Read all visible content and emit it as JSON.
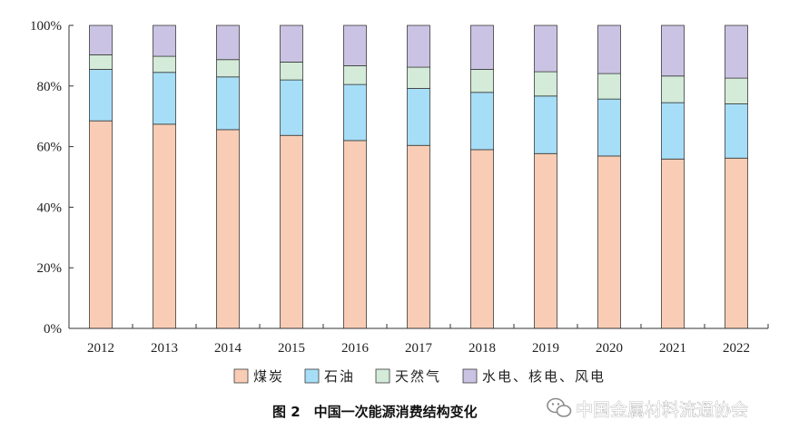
{
  "chart_data": {
    "type": "bar",
    "stacked": true,
    "categories": [
      "2012",
      "2013",
      "2014",
      "2015",
      "2016",
      "2017",
      "2018",
      "2019",
      "2020",
      "2021",
      "2022"
    ],
    "series": [
      {
        "name": "煤炭",
        "color": "#f9cdb5",
        "values": [
          68.5,
          67.4,
          65.6,
          63.7,
          62.0,
          60.4,
          59.0,
          57.7,
          56.9,
          55.9,
          56.2
        ]
      },
      {
        "name": "石油",
        "color": "#a6def7",
        "values": [
          17.0,
          17.1,
          17.4,
          18.3,
          18.5,
          18.8,
          18.9,
          19.0,
          18.8,
          18.6,
          17.9
        ]
      },
      {
        "name": "天然气",
        "color": "#d3ebd8",
        "values": [
          4.8,
          5.3,
          5.7,
          5.9,
          6.2,
          7.0,
          7.6,
          8.0,
          8.4,
          8.8,
          8.5
        ]
      },
      {
        "name": "水电、核电、风电",
        "color": "#cbc3e3",
        "values": [
          9.7,
          10.2,
          11.3,
          12.1,
          13.3,
          13.8,
          14.5,
          15.3,
          15.9,
          16.7,
          17.4
        ]
      }
    ],
    "yticks": [
      "0%",
      "20%",
      "40%",
      "60%",
      "80%",
      "100%"
    ],
    "ylim": [
      0,
      100
    ],
    "grid": false,
    "legend_position": "bottom",
    "caption": "图 2　中国一次能源消费结构变化"
  },
  "watermark": {
    "text": "中国金属材料流通协会",
    "icon": "wechat-icon"
  }
}
